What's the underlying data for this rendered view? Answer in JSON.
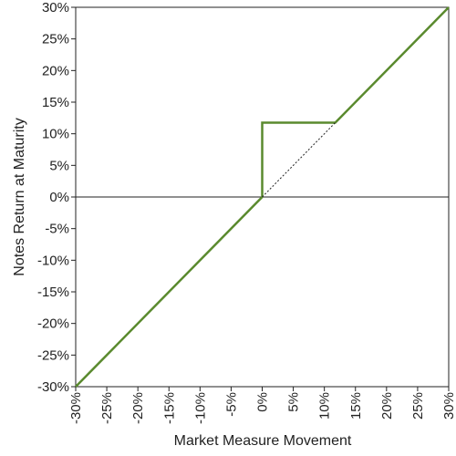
{
  "chart_data": {
    "type": "line",
    "title": "",
    "xlabel": "Market Measure Movement",
    "ylabel": "Notes Return at Maturity",
    "xlim": [
      -30,
      30
    ],
    "ylim": [
      -30,
      30
    ],
    "x_ticks": [
      "-30%",
      "-25%",
      "-20%",
      "-15%",
      "-10%",
      "-5%",
      "0%",
      "5%",
      "10%",
      "15%",
      "20%",
      "25%",
      "30%"
    ],
    "y_ticks": [
      "30%",
      "25%",
      "20%",
      "15%",
      "10%",
      "5%",
      "0%",
      "-5%",
      "-10%",
      "-15%",
      "-20%",
      "-25%",
      "-30%"
    ],
    "x_tick_values": [
      -30,
      -25,
      -20,
      -15,
      -10,
      -5,
      0,
      5,
      10,
      15,
      20,
      25,
      30
    ],
    "y_tick_values": [
      30,
      25,
      20,
      15,
      10,
      5,
      0,
      -5,
      -10,
      -15,
      -20,
      -25,
      -30
    ],
    "grid": false,
    "series": [
      {
        "style": "solid",
        "color": "#5a8a2e",
        "points": [
          [
            -30,
            -30
          ],
          [
            0,
            0
          ],
          [
            0,
            11.75
          ],
          [
            11.75,
            11.75
          ],
          [
            30,
            30
          ]
        ]
      },
      {
        "style": "dotted",
        "color": "#222222",
        "points": [
          [
            0,
            0
          ],
          [
            11.75,
            11.75
          ]
        ]
      }
    ],
    "reference_lines": [
      {
        "axis": "y",
        "value": 0,
        "color": "#222222"
      }
    ]
  }
}
